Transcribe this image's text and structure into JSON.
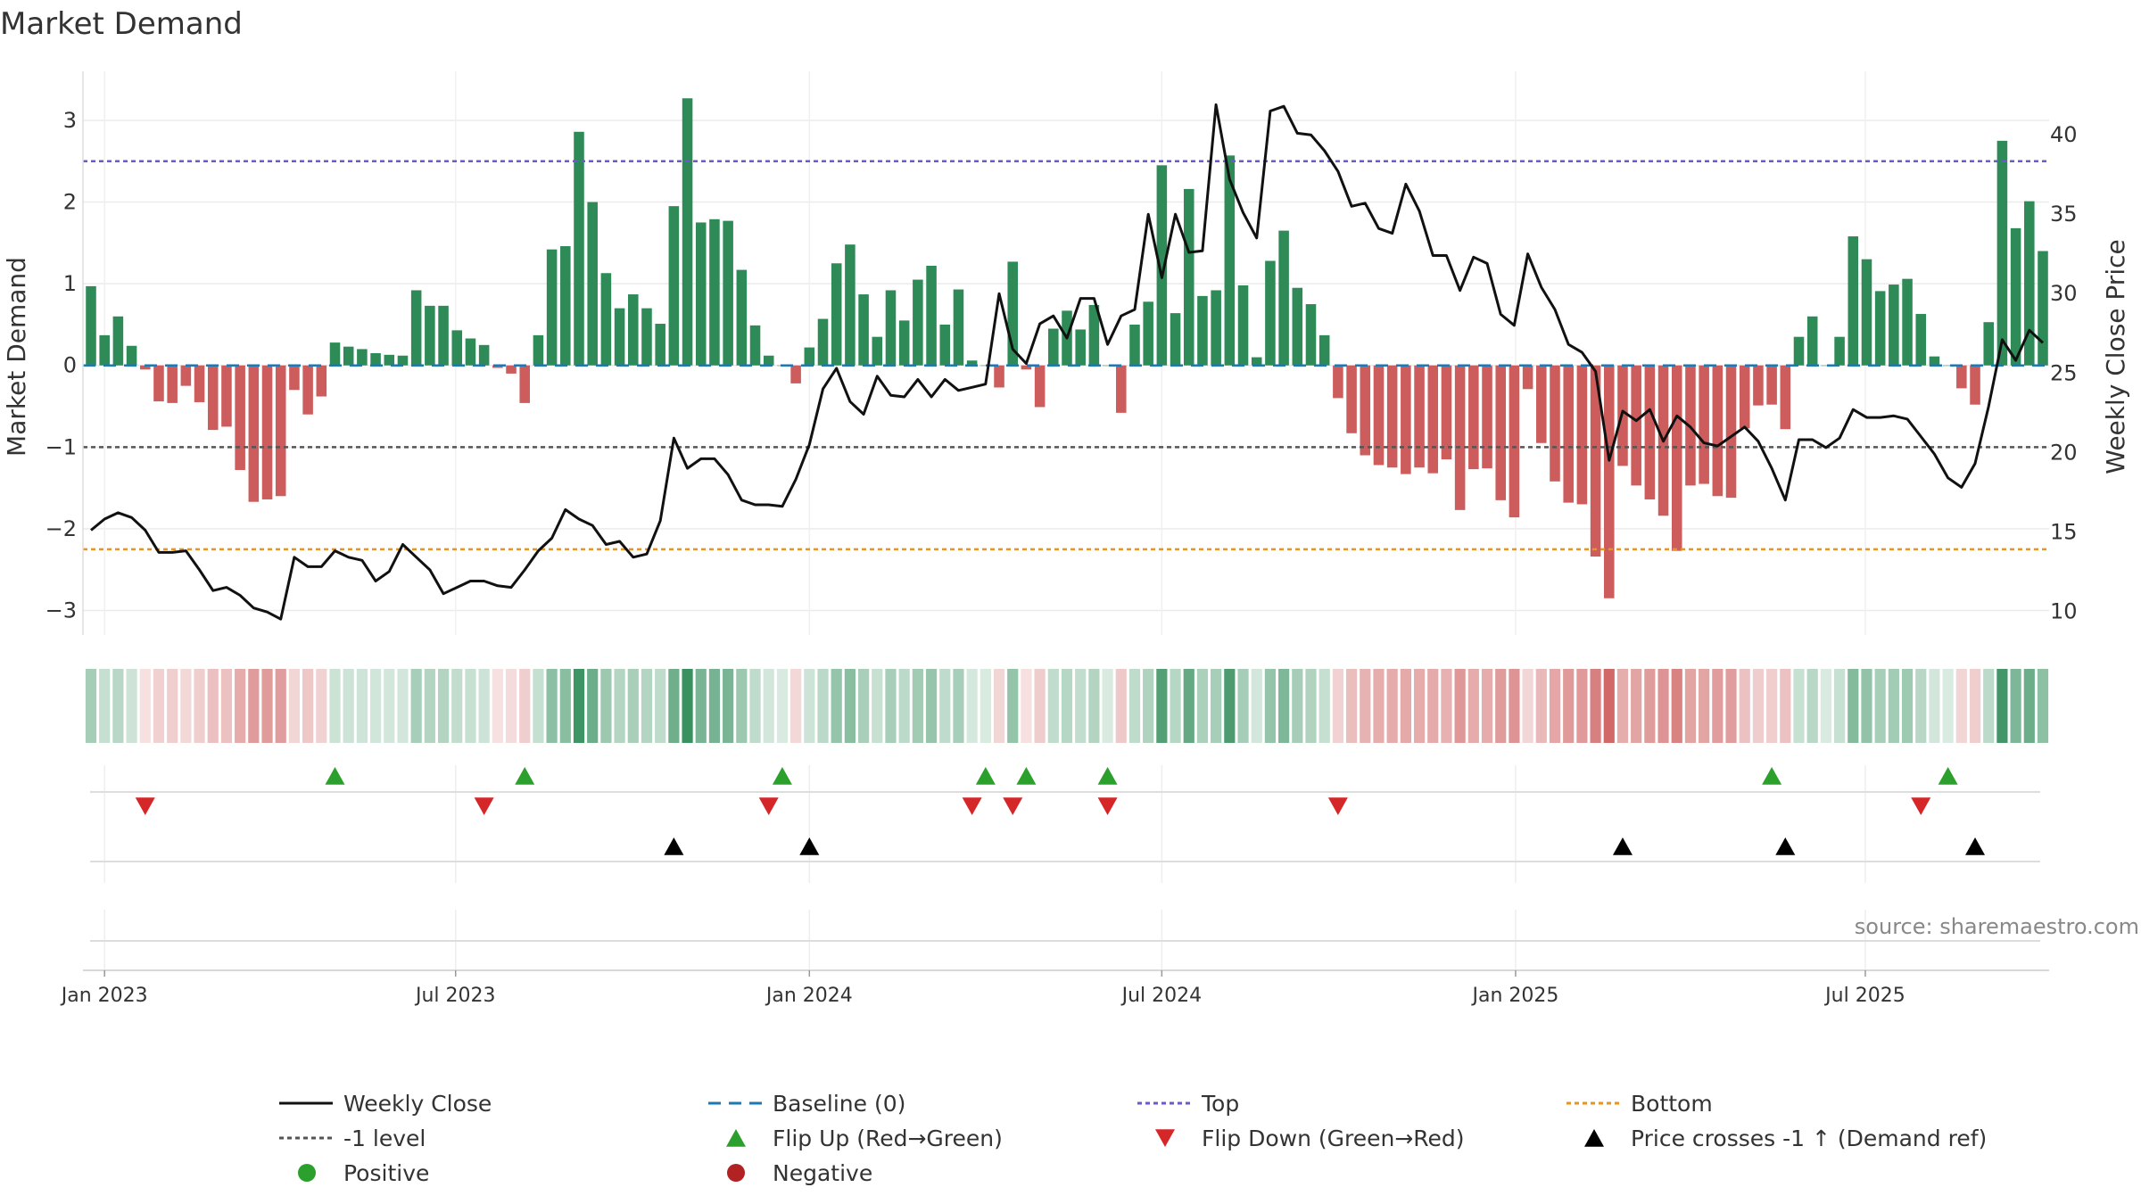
{
  "chart_data": {
    "type": "bar+line",
    "title": "Market Demand",
    "ylabel_left": "Market Demand",
    "ylabel_right": "Weekly Close Price",
    "source": "source: sharemaestro.com",
    "ylim_left": [
      -3.3,
      3.6
    ],
    "ylim_right": [
      8.5,
      44
    ],
    "yticks_left": [
      -3,
      -2,
      -1,
      0,
      1,
      2,
      3
    ],
    "yticks_right": [
      10,
      15,
      20,
      25,
      30,
      35,
      40
    ],
    "x_start": "2022-12-25",
    "x_tick_labels": [
      "Jan 2023",
      "Jul 2023",
      "Jan 2024",
      "Jul 2024",
      "Jan 2025",
      "Jul 2025"
    ],
    "x_tick_weeks": [
      1,
      26.9,
      53,
      79,
      105.1,
      130.9
    ],
    "reference_lines": {
      "baseline": 0,
      "top": 2.5,
      "bottom": -2.25,
      "minus_one_level": -1
    },
    "colors": {
      "positive": "#2e8b57",
      "negative": "#cd5c5c",
      "price": "#111111",
      "baseline": "#1f77b4",
      "top": "#6a5acd",
      "bottom": "#e69522",
      "level": "#555555",
      "flip_up": "#2ca02c",
      "flip_down": "#d62728",
      "cross": "#000000"
    },
    "demand": [
      0.97,
      0.37,
      0.6,
      0.24,
      -0.05,
      -0.44,
      -0.46,
      -0.25,
      -0.45,
      -0.79,
      -0.75,
      -1.28,
      -1.67,
      -1.64,
      -1.6,
      -0.3,
      -0.6,
      -0.38,
      0.28,
      0.23,
      0.2,
      0.15,
      0.13,
      0.12,
      0.92,
      0.73,
      0.73,
      0.43,
      0.33,
      0.25,
      -0.03,
      -0.1,
      -0.46,
      0.37,
      1.42,
      1.46,
      2.86,
      2.0,
      1.13,
      0.7,
      0.87,
      0.7,
      0.51,
      1.95,
      3.27,
      1.75,
      1.79,
      1.77,
      1.17,
      0.49,
      0.12,
      0.0,
      -0.22,
      0.22,
      0.57,
      1.25,
      1.48,
      0.87,
      0.35,
      0.92,
      0.55,
      1.05,
      1.22,
      0.5,
      0.93,
      0.06,
      0.0,
      -0.27,
      1.27,
      -0.05,
      -0.51,
      0.45,
      0.67,
      0.44,
      0.74,
      0.0,
      -0.58,
      0.5,
      0.78,
      2.45,
      0.64,
      2.16,
      0.85,
      0.92,
      2.57,
      0.98,
      0.1,
      1.28,
      1.65,
      0.95,
      0.75,
      0.37,
      -0.4,
      -0.83,
      -1.1,
      -1.22,
      -1.25,
      -1.33,
      -1.25,
      -1.32,
      -1.15,
      -1.77,
      -1.27,
      -1.26,
      -1.65,
      -1.86,
      -0.29,
      -0.95,
      -1.42,
      -1.68,
      -1.7,
      -2.34,
      -2.85,
      -1.23,
      -1.47,
      -1.64,
      -1.84,
      -2.27,
      -1.47,
      -1.45,
      -1.6,
      -1.62,
      -0.77,
      -0.49,
      -0.48,
      -0.78,
      0.35,
      0.6,
      0.0,
      0.35,
      1.58,
      1.3,
      0.91,
      0.99,
      1.06,
      0.63,
      0.11,
      0.0,
      -0.28,
      -0.48,
      0.53,
      2.75,
      1.68,
      2.01,
      1.4
    ],
    "price": [
      15.1,
      15.8,
      16.2,
      15.9,
      15.1,
      13.7,
      13.7,
      13.8,
      12.6,
      11.3,
      11.5,
      11.0,
      10.2,
      9.95,
      9.5,
      13.4,
      12.8,
      12.8,
      13.8,
      13.4,
      13.2,
      11.9,
      12.5,
      14.2,
      13.4,
      12.6,
      11.1,
      11.5,
      11.9,
      11.9,
      11.6,
      11.5,
      12.6,
      13.8,
      14.6,
      16.4,
      15.8,
      15.4,
      14.2,
      14.4,
      13.4,
      13.6,
      15.7,
      20.9,
      19.0,
      19.6,
      19.6,
      18.6,
      17.0,
      16.7,
      16.7,
      16.6,
      18.3,
      20.5,
      24.0,
      25.3,
      23.2,
      22.4,
      24.8,
      23.6,
      23.5,
      24.6,
      23.5,
      24.6,
      23.9,
      24.1,
      24.3,
      30.0,
      26.5,
      25.6,
      28.1,
      28.6,
      27.2,
      29.7,
      29.7,
      26.8,
      28.6,
      29.0,
      35.0,
      31.0,
      35.0,
      32.6,
      32.7,
      41.9,
      37.2,
      35.1,
      33.5,
      41.5,
      41.8,
      40.1,
      40.0,
      39.0,
      37.7,
      35.5,
      35.7,
      34.1,
      33.8,
      36.9,
      35.2,
      32.4,
      32.4,
      30.2,
      32.3,
      31.9,
      28.7,
      28.0,
      32.5,
      30.4,
      29.0,
      26.8,
      26.3,
      25.1,
      19.5,
      22.6,
      22.0,
      22.7,
      20.7,
      22.3,
      21.6,
      20.6,
      20.4,
      21.0,
      21.6,
      20.7,
      19.0,
      17.0,
      20.8,
      20.8,
      20.3,
      20.9,
      22.7,
      22.2,
      22.2,
      22.3,
      22.1,
      21.0,
      19.9,
      18.4,
      17.8,
      19.3,
      22.9,
      27.1,
      25.8,
      27.7,
      26.9
    ],
    "flip_up_weeks": [
      18,
      32,
      51,
      66,
      69,
      75,
      124,
      137
    ],
    "flip_down_weeks": [
      4,
      29,
      50,
      65,
      68,
      75,
      92,
      135
    ],
    "price_cross_weeks": [
      43,
      53,
      113,
      125,
      139
    ],
    "legend": [
      {
        "label": "Weekly Close",
        "kind": "line"
      },
      {
        "label": "Baseline (0)",
        "kind": "dash"
      },
      {
        "label": "Top",
        "kind": "dotted-purple"
      },
      {
        "label": "Bottom",
        "kind": "dotted-orange"
      },
      {
        "label": "-1 level",
        "kind": "dotted-gray"
      },
      {
        "label": "Flip Up (Red→Green)",
        "kind": "tri-up-green"
      },
      {
        "label": "Flip Down (Green→Red)",
        "kind": "tri-down-red"
      },
      {
        "label": "Price crosses -1 ↑ (Demand ref)",
        "kind": "tri-up-black"
      },
      {
        "label": "Positive",
        "kind": "dot-green"
      },
      {
        "label": "Negative",
        "kind": "dot-red"
      }
    ]
  }
}
